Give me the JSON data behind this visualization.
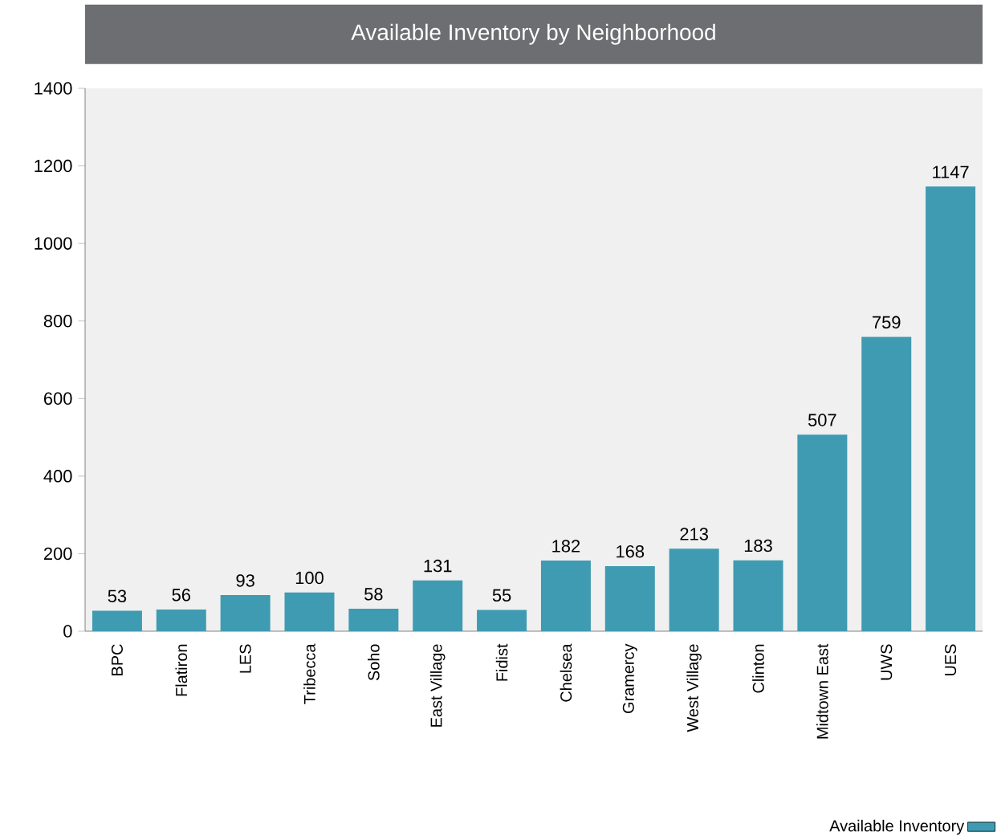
{
  "chart_data": {
    "type": "bar",
    "title": "Available Inventory by Neighborhood",
    "categories": [
      "BPC",
      "Flatiron",
      "LES",
      "Tribecca",
      "Soho",
      "East Village",
      "Fidist",
      "Chelsea",
      "Gramercy",
      "West Village",
      "Clinton",
      "Midtown East",
      "UWS",
      "UES"
    ],
    "series": [
      {
        "name": "Available Inventory",
        "color": "#3f9bb1",
        "values": [
          53,
          56,
          93,
          100,
          58,
          131,
          55,
          182,
          168,
          213,
          183,
          507,
          759,
          1147
        ]
      }
    ],
    "ylim": [
      0,
      1400
    ],
    "yticks": [
      0,
      200,
      400,
      600,
      800,
      1000,
      1200,
      1400
    ],
    "data_labels": true,
    "legend": "bottom right"
  }
}
